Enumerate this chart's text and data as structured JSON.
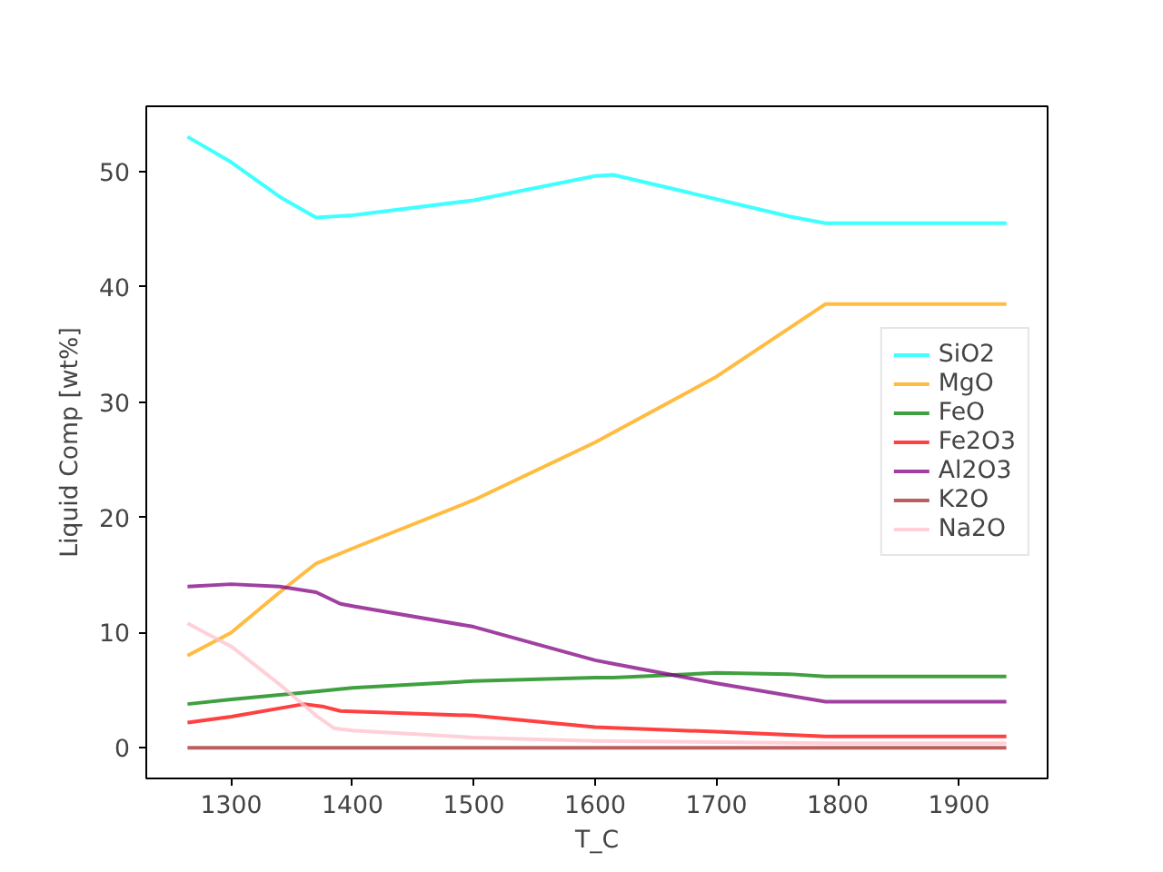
{
  "chart_data": {
    "type": "line",
    "xlabel": "T_C",
    "ylabel": "Liquid Comp [wt%]",
    "xlim": [
      1230,
      1973
    ],
    "ylim": [
      -2.65,
      55.65
    ],
    "xticks": [
      1300,
      1400,
      1500,
      1600,
      1700,
      1800,
      1900
    ],
    "yticks": [
      0,
      10,
      20,
      30,
      40,
      50
    ],
    "grid": false,
    "legend": "right",
    "series": [
      {
        "name": "SiO2",
        "color": "#00ffff",
        "x": [
          1264,
          1300,
          1340,
          1370,
          1400,
          1500,
          1600,
          1615,
          1700,
          1760,
          1790,
          1939
        ],
        "values": [
          53.0,
          50.8,
          47.8,
          46.0,
          46.2,
          47.5,
          49.6,
          49.7,
          47.6,
          46.1,
          45.5,
          45.5
        ]
      },
      {
        "name": "MgO",
        "color": "#ffa500",
        "x": [
          1264,
          1300,
          1340,
          1370,
          1400,
          1500,
          1600,
          1700,
          1790,
          1939
        ],
        "values": [
          8.0,
          10.0,
          13.5,
          16.0,
          17.3,
          21.5,
          26.5,
          32.2,
          38.5,
          38.5
        ]
      },
      {
        "name": "FeO",
        "color": "#008000",
        "x": [
          1264,
          1300,
          1370,
          1400,
          1500,
          1600,
          1615,
          1700,
          1760,
          1790,
          1939
        ],
        "values": [
          3.8,
          4.2,
          4.9,
          5.2,
          5.8,
          6.1,
          6.1,
          6.5,
          6.4,
          6.2,
          6.2
        ]
      },
      {
        "name": "Fe2O3",
        "color": "#ff0000",
        "x": [
          1264,
          1300,
          1360,
          1375,
          1390,
          1500,
          1600,
          1700,
          1790,
          1939
        ],
        "values": [
          2.2,
          2.7,
          3.8,
          3.6,
          3.2,
          2.8,
          1.8,
          1.4,
          1.0,
          1.0
        ]
      },
      {
        "name": "Al2O3",
        "color": "#800080",
        "x": [
          1264,
          1300,
          1340,
          1370,
          1390,
          1400,
          1500,
          1600,
          1615,
          1700,
          1790,
          1939
        ],
        "values": [
          14.0,
          14.2,
          14.0,
          13.5,
          12.5,
          12.3,
          10.5,
          7.6,
          7.3,
          5.6,
          4.0,
          4.0
        ]
      },
      {
        "name": "K2O",
        "color": "#a52a2a",
        "x": [
          1264,
          1939
        ],
        "values": [
          0,
          0
        ]
      },
      {
        "name": "Na2O",
        "color": "#ffc0cb",
        "x": [
          1264,
          1300,
          1340,
          1370,
          1385,
          1400,
          1500,
          1600,
          1700,
          1790,
          1939
        ],
        "values": [
          10.8,
          8.8,
          5.5,
          2.8,
          1.7,
          1.5,
          0.9,
          0.6,
          0.5,
          0.4,
          0.4
        ]
      }
    ]
  }
}
